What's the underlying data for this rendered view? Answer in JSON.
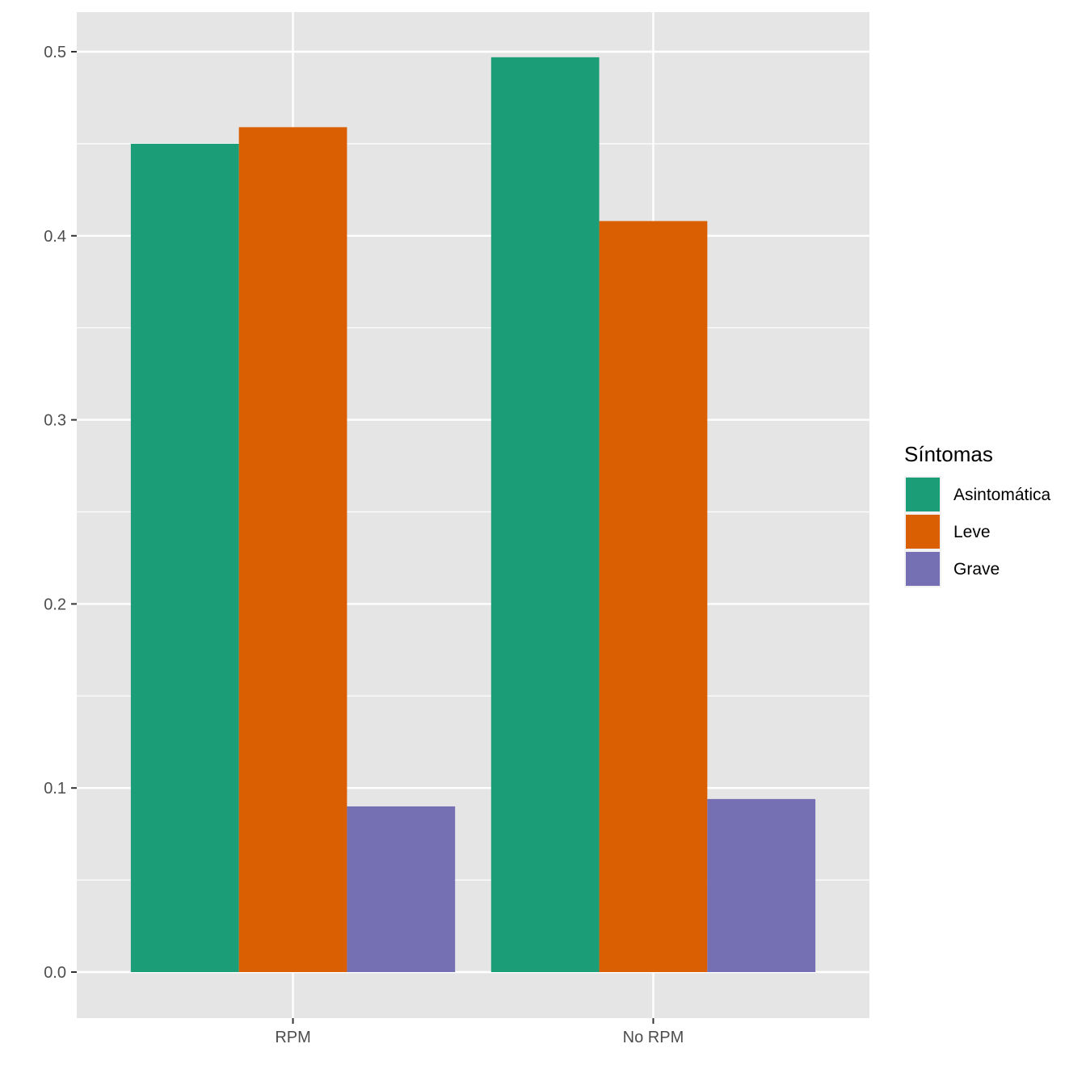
{
  "chart_data": {
    "type": "bar",
    "categories": [
      "RPM",
      "No RPM"
    ],
    "series": [
      {
        "name": "Asintomática",
        "values": [
          0.45,
          0.497
        ],
        "color": "#1B9E77"
      },
      {
        "name": "Leve",
        "values": [
          0.459,
          0.408
        ],
        "color": "#D95F02"
      },
      {
        "name": "Grave",
        "values": [
          0.09,
          0.094
        ],
        "color": "#7570B3"
      }
    ],
    "title": "",
    "xlabel": "",
    "ylabel": "",
    "ylim": [
      -0.025,
      0.52
    ],
    "yticks": [
      0.0,
      0.1,
      0.2,
      0.3,
      0.4,
      0.5
    ],
    "ytick_labels": [
      "0.0",
      "0.1",
      "0.2",
      "0.3",
      "0.4",
      "0.5"
    ],
    "legend": {
      "title": "Síntomas",
      "position": "right"
    },
    "grid": true,
    "panel_color": "#E5E5E5"
  }
}
